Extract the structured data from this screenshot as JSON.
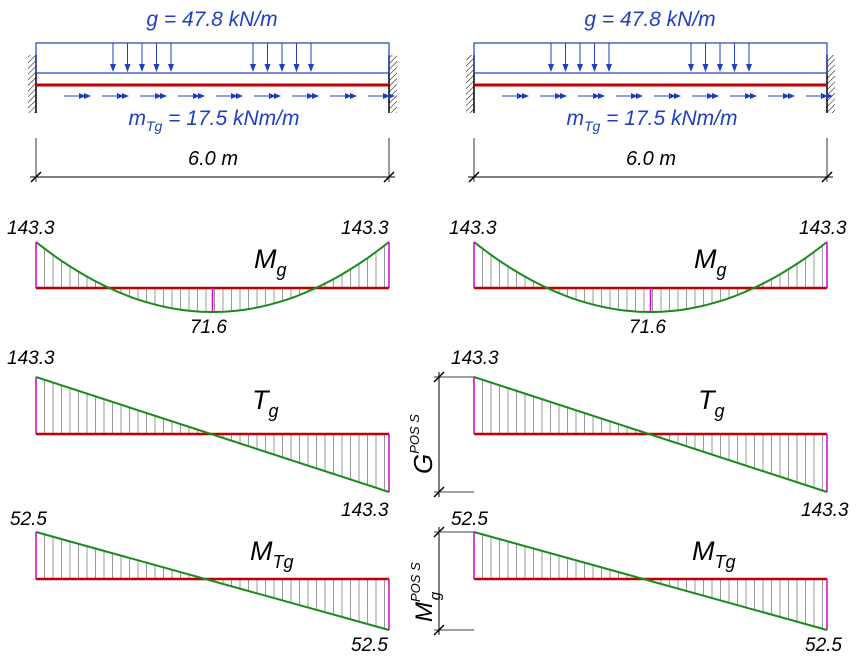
{
  "load": {
    "g_label": "g = 47.8 kN/m",
    "mt_prefix": "m",
    "mt_sub": "Tg",
    "mt_suffix": " = 17.5 kNm/m",
    "span_label": "6.0 m"
  },
  "left": {
    "moment": {
      "name": "M",
      "sub": "g",
      "end_left": "143.3",
      "end_right": "143.3",
      "mid": "71.6"
    },
    "shear": {
      "name": "T",
      "sub": "g",
      "top_left": "143.3",
      "bottom_right": "143.3"
    },
    "torsion": {
      "name": "M",
      "sub": "Tg",
      "top_left": "52.5",
      "bottom_right": "52.5"
    }
  },
  "right": {
    "moment": {
      "name": "M",
      "sub": "g",
      "end_left": "143.3",
      "end_right": "143.3",
      "mid": "71.6"
    },
    "shear": {
      "name": "T",
      "sub": "g",
      "top_left": "143.3",
      "bottom_right": "143.3"
    },
    "torsion": {
      "name": "M",
      "sub": "Tg",
      "top_left": "52.5",
      "bottom_right": "52.5"
    }
  },
  "dims": {
    "shear_dim": {
      "base": "G",
      "sup": "POS S"
    },
    "torsion_dim": {
      "base": "M",
      "sub": "g",
      "sup": "POS S"
    }
  },
  "colors": {
    "load": "#1f3fbf",
    "beam": "#c00000",
    "curve": "#1a8a1a",
    "end_line": "#d000d0",
    "hatch": "#555555"
  }
}
